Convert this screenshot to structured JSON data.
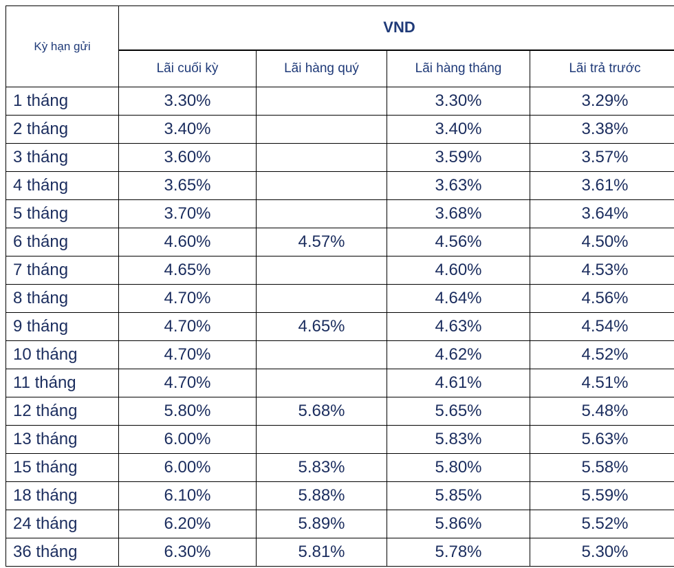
{
  "table": {
    "term_header": "Kỳ hạn gửi",
    "currency_header": "VND",
    "columns": [
      "Lãi cuối kỳ",
      "Lãi hàng quý",
      "Lãi hàng tháng",
      "Lãi trả trước"
    ],
    "rows": [
      [
        "1 tháng",
        "3.30%",
        null,
        "3.30%",
        "3.29%"
      ],
      [
        "2 tháng",
        "3.40%",
        null,
        "3.40%",
        "3.38%"
      ],
      [
        "3 tháng",
        "3.60%",
        null,
        "3.59%",
        "3.57%"
      ],
      [
        "4 tháng",
        "3.65%",
        null,
        "3.63%",
        "3.61%"
      ],
      [
        "5 tháng",
        "3.70%",
        null,
        "3.68%",
        "3.64%"
      ],
      [
        "6 tháng",
        "4.60%",
        "4.57%",
        "4.56%",
        "4.50%"
      ],
      [
        "7 tháng",
        "4.65%",
        null,
        "4.60%",
        "4.53%"
      ],
      [
        "8 tháng",
        "4.70%",
        null,
        "4.64%",
        "4.56%"
      ],
      [
        "9 tháng",
        "4.70%",
        "4.65%",
        "4.63%",
        "4.54%"
      ],
      [
        "10 tháng",
        "4.70%",
        null,
        "4.62%",
        "4.52%"
      ],
      [
        "11 tháng",
        "4.70%",
        null,
        "4.61%",
        "4.51%"
      ],
      [
        "12 tháng",
        "5.80%",
        "5.68%",
        "5.65%",
        "5.48%"
      ],
      [
        "13 tháng",
        "6.00%",
        null,
        "5.83%",
        "5.63%"
      ],
      [
        "15 tháng",
        "6.00%",
        "5.83%",
        "5.80%",
        "5.58%"
      ],
      [
        "18 tháng",
        "6.10%",
        "5.88%",
        "5.85%",
        "5.59%"
      ],
      [
        "24 tháng",
        "6.20%",
        "5.89%",
        "5.86%",
        "5.52%"
      ],
      [
        "36  tháng",
        "6.30%",
        "5.81%",
        "5.78%",
        "5.30%"
      ]
    ]
  }
}
